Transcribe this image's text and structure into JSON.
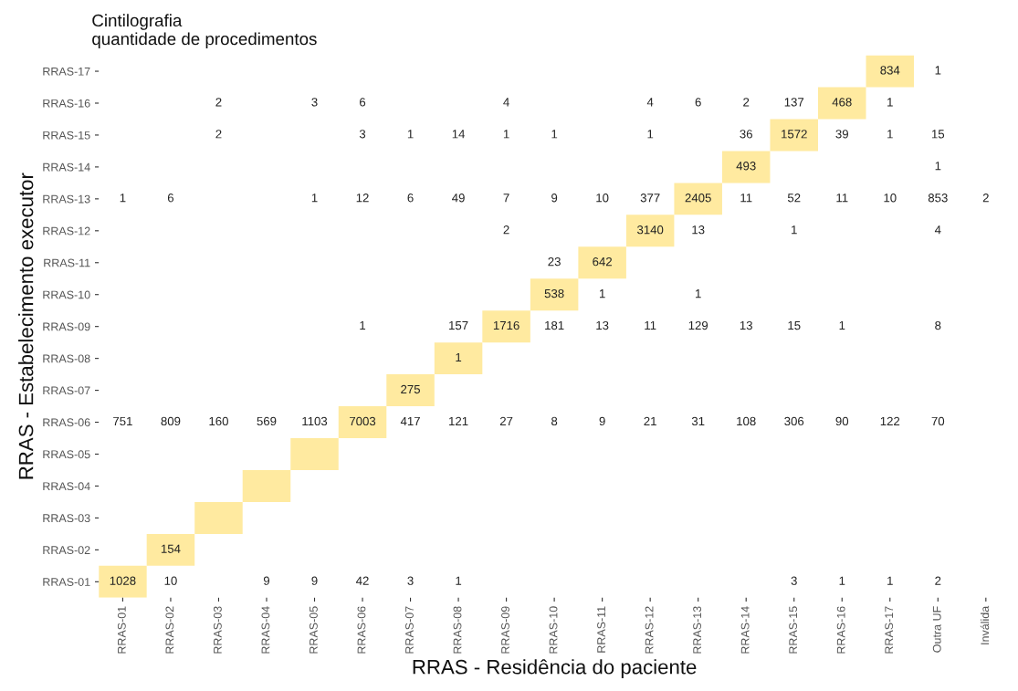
{
  "chart_data": {
    "type": "heatmap",
    "title": "Cintilografia\nquantidade de procedimentos",
    "xlabel": "RRAS - Residência do paciente",
    "ylabel": "RRAS - Estabelecimento executor",
    "color": "#ffeaa0",
    "data_labels": true,
    "categories": [
      "RRAS-01",
      "RRAS-02",
      "RRAS-03",
      "RRAS-04",
      "RRAS-05",
      "RRAS-06",
      "RRAS-07",
      "RRAS-08",
      "RRAS-09",
      "RRAS-10",
      "RRAS-11",
      "RRAS-12",
      "RRAS-13",
      "RRAS-14",
      "RRAS-15",
      "RRAS-16",
      "RRAS-17",
      "Outra UF",
      "Inválida"
    ],
    "y_categories": [
      "RRAS-17",
      "RRAS-16",
      "RRAS-15",
      "RRAS-14",
      "RRAS-13",
      "RRAS-12",
      "RRAS-11",
      "RRAS-10",
      "RRAS-09",
      "RRAS-08",
      "RRAS-07",
      "RRAS-06",
      "RRAS-05",
      "RRAS-04",
      "RRAS-03",
      "RRAS-02",
      "RRAS-01"
    ],
    "cells": [
      [
        null,
        null,
        null,
        null,
        null,
        null,
        null,
        null,
        null,
        null,
        null,
        null,
        null,
        null,
        null,
        null,
        834,
        1,
        null
      ],
      [
        null,
        null,
        2,
        null,
        3,
        6,
        null,
        null,
        4,
        null,
        null,
        4,
        6,
        2,
        137,
        468,
        1,
        null,
        null
      ],
      [
        null,
        null,
        2,
        null,
        null,
        3,
        1,
        14,
        1,
        1,
        null,
        1,
        null,
        36,
        1572,
        39,
        1,
        15,
        null
      ],
      [
        null,
        null,
        null,
        null,
        null,
        null,
        null,
        null,
        null,
        null,
        null,
        null,
        null,
        493,
        null,
        null,
        null,
        1,
        null
      ],
      [
        1,
        6,
        null,
        null,
        1,
        12,
        6,
        49,
        7,
        9,
        10,
        377,
        2405,
        11,
        52,
        11,
        10,
        853,
        2
      ],
      [
        null,
        null,
        null,
        null,
        null,
        null,
        null,
        null,
        2,
        null,
        null,
        3140,
        13,
        null,
        1,
        null,
        null,
        4,
        null
      ],
      [
        null,
        null,
        null,
        null,
        null,
        null,
        null,
        null,
        null,
        23,
        642,
        null,
        null,
        null,
        null,
        null,
        null,
        null,
        null
      ],
      [
        null,
        null,
        null,
        null,
        null,
        null,
        null,
        null,
        null,
        538,
        1,
        null,
        1,
        null,
        null,
        null,
        null,
        null,
        null
      ],
      [
        null,
        null,
        null,
        null,
        null,
        1,
        null,
        157,
        1716,
        181,
        13,
        11,
        129,
        13,
        15,
        1,
        null,
        8,
        null
      ],
      [
        null,
        null,
        null,
        null,
        null,
        null,
        null,
        1,
        null,
        null,
        null,
        null,
        null,
        null,
        null,
        null,
        null,
        null,
        null
      ],
      [
        null,
        null,
        null,
        null,
        null,
        null,
        275,
        null,
        null,
        null,
        null,
        null,
        null,
        null,
        null,
        null,
        null,
        null,
        null
      ],
      [
        751,
        809,
        160,
        569,
        1103,
        7003,
        417,
        121,
        27,
        8,
        9,
        21,
        31,
        108,
        306,
        90,
        122,
        70,
        null
      ],
      [
        null,
        null,
        null,
        null,
        null,
        null,
        null,
        null,
        null,
        null,
        null,
        null,
        null,
        null,
        null,
        null,
        null,
        null,
        null
      ],
      [
        null,
        null,
        null,
        null,
        null,
        null,
        null,
        null,
        null,
        null,
        null,
        null,
        null,
        null,
        null,
        null,
        null,
        null,
        null
      ],
      [
        null,
        null,
        null,
        null,
        null,
        null,
        null,
        null,
        null,
        null,
        null,
        null,
        null,
        null,
        null,
        null,
        null,
        null,
        null
      ],
      [
        null,
        154,
        null,
        null,
        null,
        null,
        null,
        null,
        null,
        null,
        null,
        null,
        null,
        null,
        null,
        null,
        null,
        null,
        null
      ],
      [
        1028,
        10,
        null,
        9,
        9,
        42,
        3,
        1,
        null,
        null,
        null,
        null,
        null,
        null,
        3,
        1,
        1,
        2,
        null
      ]
    ]
  }
}
